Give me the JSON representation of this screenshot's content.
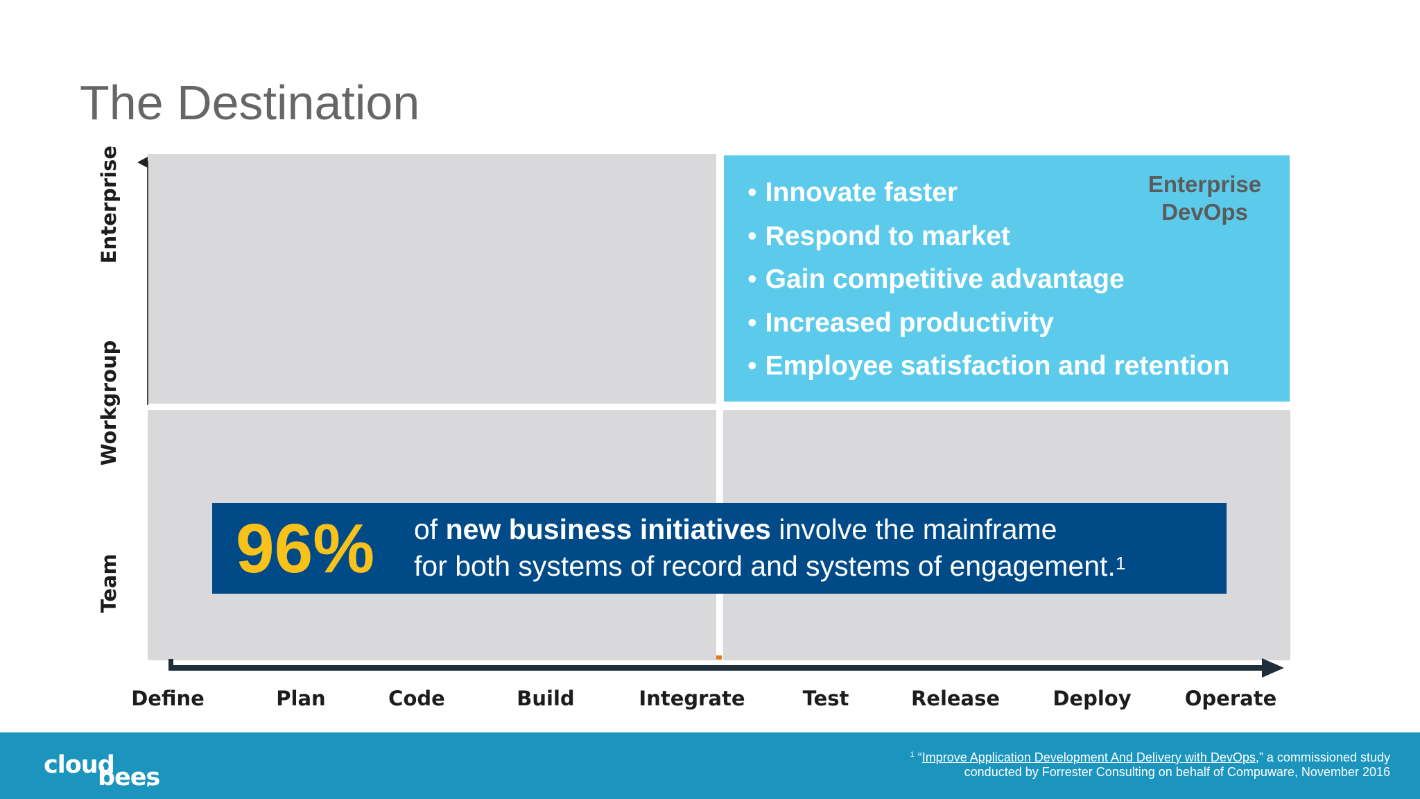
{
  "title": "The Destination",
  "diagram": {
    "y_axis_labels": [
      "Enterprise",
      "Workgroup",
      "Team"
    ],
    "x_axis_labels": [
      "Define",
      "Plan",
      "Code",
      "Build",
      "Integrate",
      "Test",
      "Release",
      "Deploy",
      "Operate"
    ],
    "quadrant_top_right": {
      "label_line1": "Enterprise",
      "label_line2": "DevOps",
      "bullets": [
        "Innovate faster",
        "Respond to market",
        "Gain competitive advantage",
        "Increased productivity",
        "Employee satisfaction and retention"
      ],
      "color": "#5ccbeb"
    },
    "quadrant_color": "#d9d9dc"
  },
  "stat": {
    "number": "96%",
    "line1_prefix": "of ",
    "line1_bold": "new business initiatives",
    "line1_suffix": " involve the mainframe",
    "line2": "for both systems of record and systems of engagement.",
    "footnote_mark": "1",
    "number_color": "#f9c21b",
    "box_color": "#004a87"
  },
  "footer": {
    "logo_part1": "cloud",
    "logo_part2": "bees",
    "logo_dot": ".",
    "citation_mark": "1",
    "citation_open_quote": "“",
    "citation_link": "Improve Application Development And Delivery with DevOps",
    "citation_rest": ",” a commissioned study",
    "citation_line2": "conducted by Forrester Consulting on behalf of Compuware, November 2016",
    "color": "#1b95be"
  }
}
